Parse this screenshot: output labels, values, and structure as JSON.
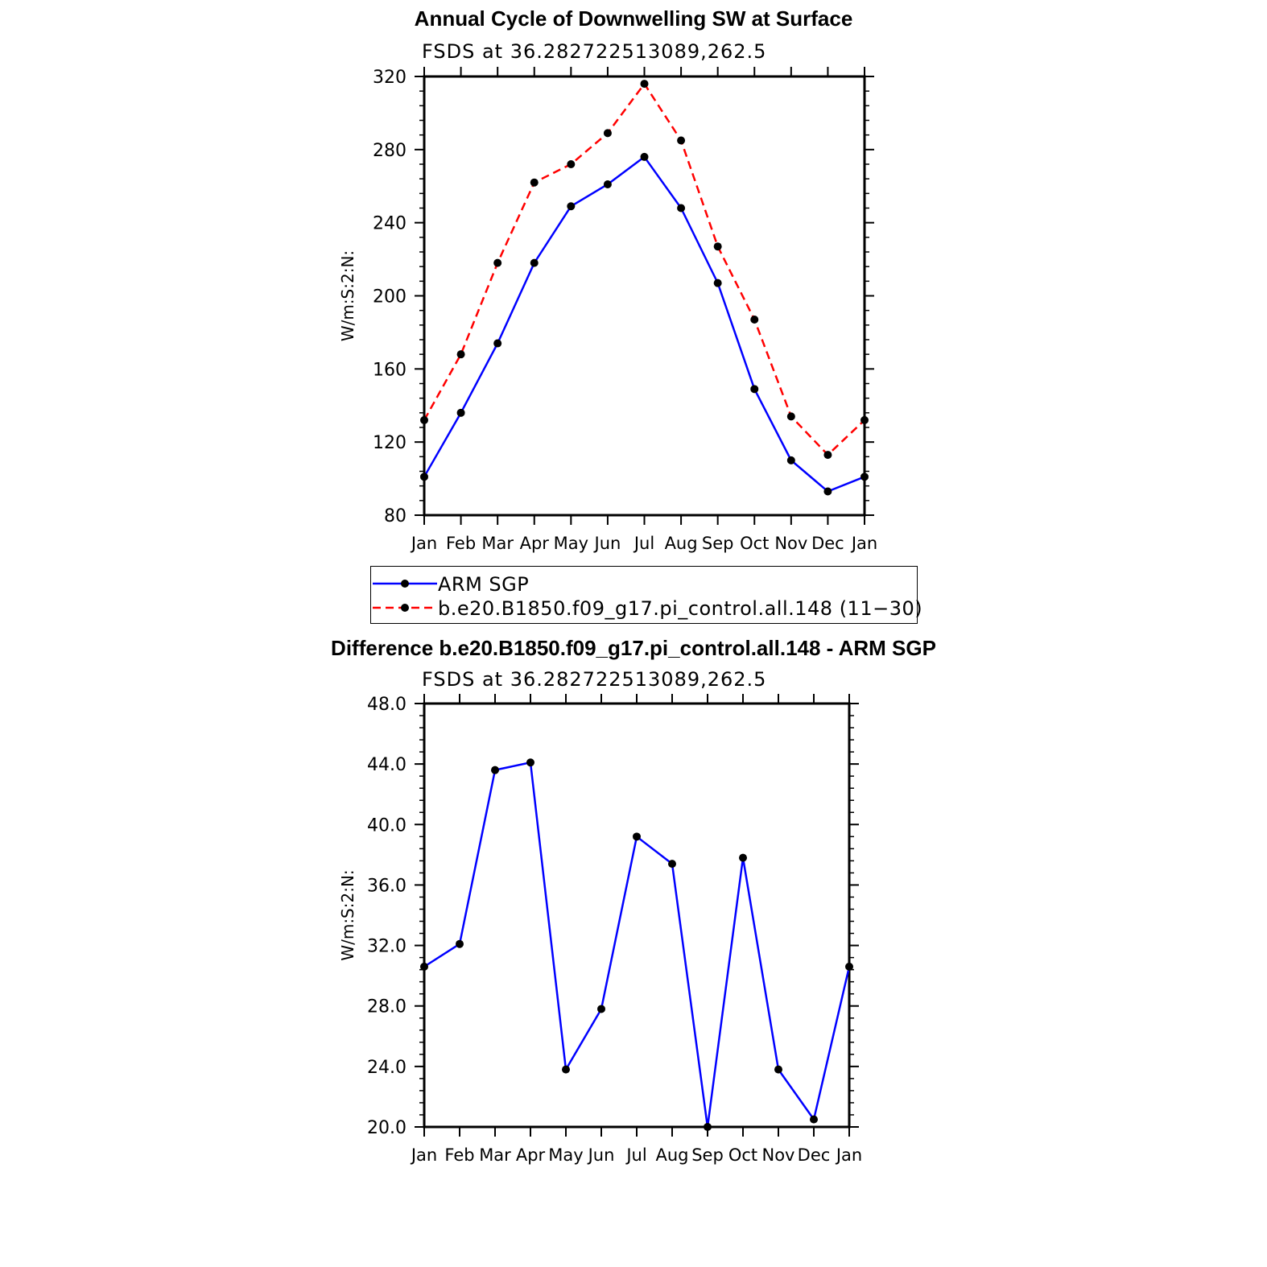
{
  "chart_data": [
    {
      "type": "line",
      "title": "Annual Cycle of Downwelling SW at Surface",
      "subtitle": "FSDS at 36.282722513089,262.5",
      "ylabel": "W/m:S:2:N:",
      "xlabel": "",
      "ylim": [
        80,
        320
      ],
      "yticks": [
        "80",
        "120",
        "160",
        "200",
        "240",
        "280",
        "320"
      ],
      "categories": [
        "Jan",
        "Feb",
        "Mar",
        "Apr",
        "May",
        "Jun",
        "Jul",
        "Aug",
        "Sep",
        "Oct",
        "Nov",
        "Dec",
        "Jan"
      ],
      "series": [
        {
          "name": "ARM SGP",
          "color": "#0000ff",
          "dash": "solid",
          "values": [
            101,
            136,
            174,
            218,
            249,
            261,
            276,
            248,
            207,
            149,
            110,
            93,
            101
          ]
        },
        {
          "name": "b.e20.B1850.f09_g17.pi_control.all.148 (11−30)",
          "color": "#ff0000",
          "dash": "dashed",
          "values": [
            132,
            168,
            218,
            262,
            272,
            289,
            316,
            285,
            227,
            187,
            134,
            113,
            132
          ]
        }
      ],
      "legend": "below"
    },
    {
      "type": "line",
      "title": "Difference b.e20.B1850.f09_g17.pi_control.all.148 - ARM SGP",
      "subtitle": "FSDS at 36.282722513089,262.5",
      "ylabel": "W/m:S:2:N:",
      "xlabel": "",
      "ylim": [
        20,
        48
      ],
      "yticks": [
        "20.0",
        "24.0",
        "28.0",
        "32.0",
        "36.0",
        "40.0",
        "44.0",
        "48.0"
      ],
      "categories": [
        "Jan",
        "Feb",
        "Mar",
        "Apr",
        "May",
        "Jun",
        "Jul",
        "Aug",
        "Sep",
        "Oct",
        "Nov",
        "Dec",
        "Jan"
      ],
      "series": [
        {
          "color": "#0000ff",
          "dash": "solid",
          "values": [
            30.6,
            32.1,
            43.6,
            44.1,
            23.8,
            27.8,
            39.2,
            37.4,
            20.0,
            37.8,
            23.8,
            20.5,
            30.6
          ]
        }
      ]
    }
  ]
}
